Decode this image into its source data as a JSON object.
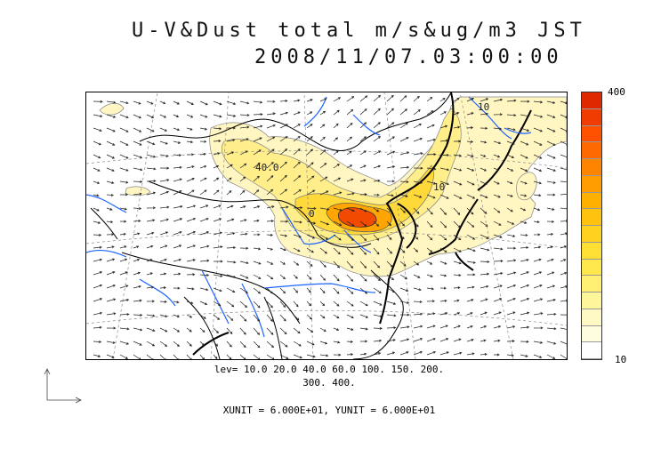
{
  "title": {
    "line1": "U-V&Dust total m/s&ug/m3 JST",
    "line2": "2008/11/07.03:00:00"
  },
  "colorbar": {
    "max_label": "400",
    "min_label": "10",
    "colors": [
      "#ffffff",
      "#fffde0",
      "#fff9c4",
      "#fff59a",
      "#ffef72",
      "#ffe84d",
      "#ffdf33",
      "#ffd21f",
      "#ffc20f",
      "#ffb000",
      "#ff9c00",
      "#ff8500",
      "#ff6a00",
      "#ff5000",
      "#f03c00",
      "#e02800"
    ]
  },
  "levels_caption": {
    "line1": "lev= 10.0 20.0 40.0 60.0 100. 150. 200.",
    "line2": "300. 400."
  },
  "unit_caption": "XUNIT = 6.000E+01, YUNIT = 6.000E+01",
  "contour_labels": [
    "40.0",
    "10",
    "0",
    "10"
  ],
  "colors": {
    "coast": "#000000",
    "rivers": "#1e64ff",
    "grid": "#888888",
    "dust_low": "#fff3a6",
    "dust_high": "#e83a00"
  }
}
